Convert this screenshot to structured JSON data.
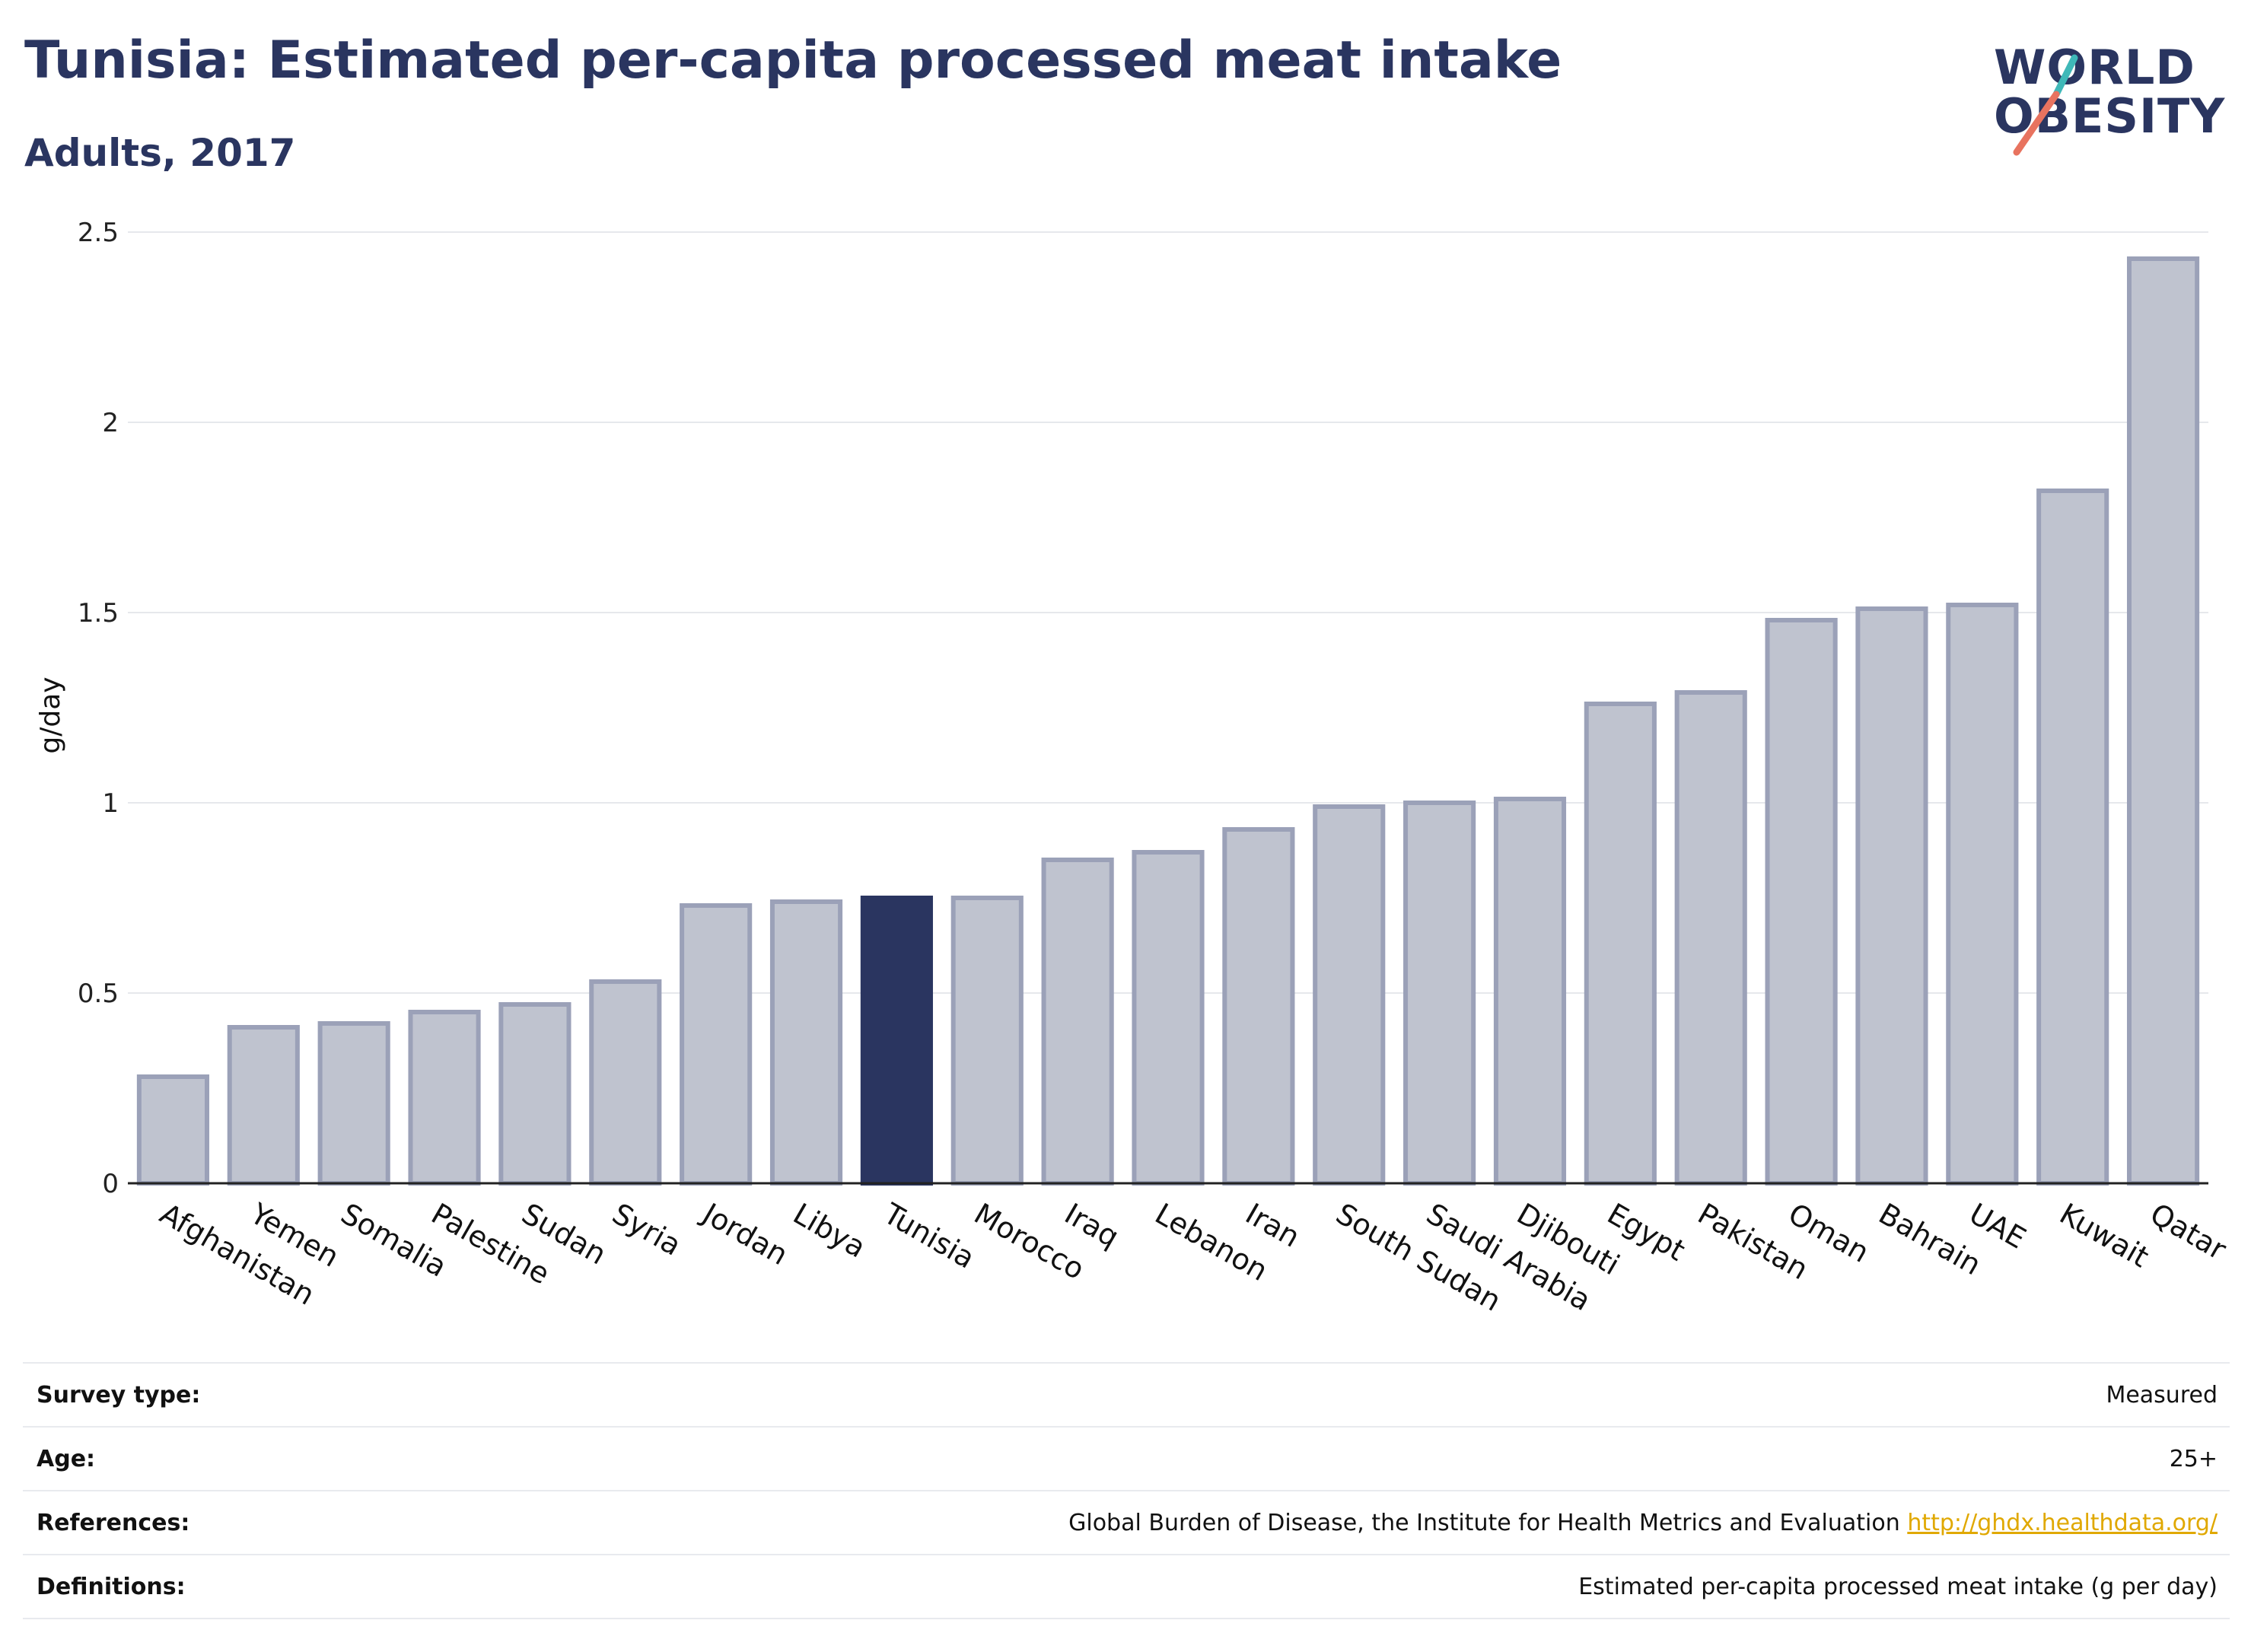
{
  "header": {
    "title": "Tunisia: Estimated per-capita processed meat intake",
    "subtitle": "Adults, 2017"
  },
  "logo": {
    "line1": "WORLD",
    "line2": "OBESITY",
    "icon": "world-obesity-logo"
  },
  "chart_data": {
    "type": "bar",
    "ylabel": "g/day",
    "ylim": [
      0,
      2.5
    ],
    "yticks": [
      "0",
      "0.5",
      "1",
      "1.5",
      "2",
      "2.5"
    ],
    "highlight": "Tunisia",
    "grid": true,
    "colors": {
      "bar": "#bfc3cf",
      "bar_border": "#9ba1b8",
      "highlight": "#2a3560"
    },
    "categories": [
      "Afghanistan",
      "Yemen",
      "Somalia",
      "Palestine",
      "Sudan",
      "Syria",
      "Jordan",
      "Libya",
      "Tunisia",
      "Morocco",
      "Iraq",
      "Lebanon",
      "Iran",
      "South Sudan",
      "Saudi Arabia",
      "Djibouti",
      "Egypt",
      "Pakistan",
      "Oman",
      "Bahrain",
      "UAE",
      "Kuwait",
      "Qatar"
    ],
    "values": [
      0.28,
      0.41,
      0.42,
      0.45,
      0.47,
      0.53,
      0.73,
      0.74,
      0.75,
      0.75,
      0.85,
      0.87,
      0.93,
      0.99,
      1.0,
      1.01,
      1.26,
      1.29,
      1.48,
      1.51,
      1.52,
      1.82,
      2.43
    ]
  },
  "info": {
    "survey_label": "Survey type:",
    "survey_value": "Measured",
    "age_label": "Age:",
    "age_value": "25+",
    "ref_label": "References:",
    "ref_value": "Global Burden of Disease, the Institute for Health Metrics and Evaluation",
    "ref_link": "http://ghdx.healthdata.org/",
    "def_label": "Definitions:",
    "def_value": "Estimated per-capita processed meat intake (g per day)"
  }
}
